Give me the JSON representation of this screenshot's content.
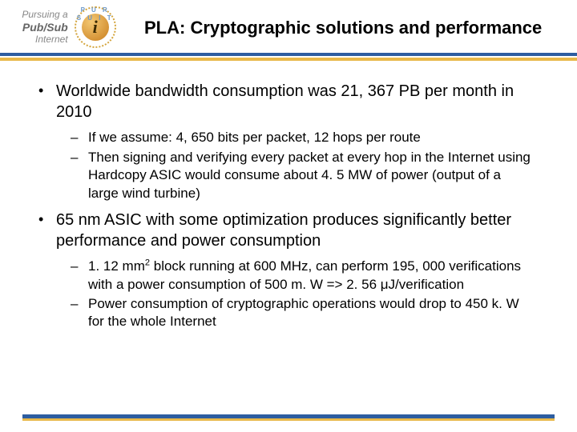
{
  "logo": {
    "line1": "Pursuing a",
    "line2": "Pub/Sub",
    "line3": "Internet",
    "arc": "P U R S U I T",
    "glyph": "i"
  },
  "title": "PLA: Cryptographic solutions and performance",
  "colors": {
    "blue": "#2d5da0",
    "yellow": "#e8b84a",
    "text": "#000000",
    "logo_gray": "#808080"
  },
  "bullets": [
    {
      "text": "Worldwide bandwidth consumption was 21, 367 PB per month in 2010",
      "sub": [
        "If we assume: 4, 650 bits per packet, 12 hops per route",
        "Then signing and verifying every packet at every hop in the Internet using Hardcopy ASIC would consume about 4. 5 MW of power (output of a large wind turbine)"
      ]
    },
    {
      "text": "65 nm ASIC with some optimization produces significantly better performance and power consumption",
      "sub": [
        "1. 12 mm2 block running at 600 MHz, can perform 195, 000 verifications with a power consumption of 500 m. W => 2. 56 μJ/verification",
        "Power consumption of cryptographic operations would drop to 450 k. W for the whole Internet"
      ],
      "sub_sup_index": 0
    }
  ]
}
